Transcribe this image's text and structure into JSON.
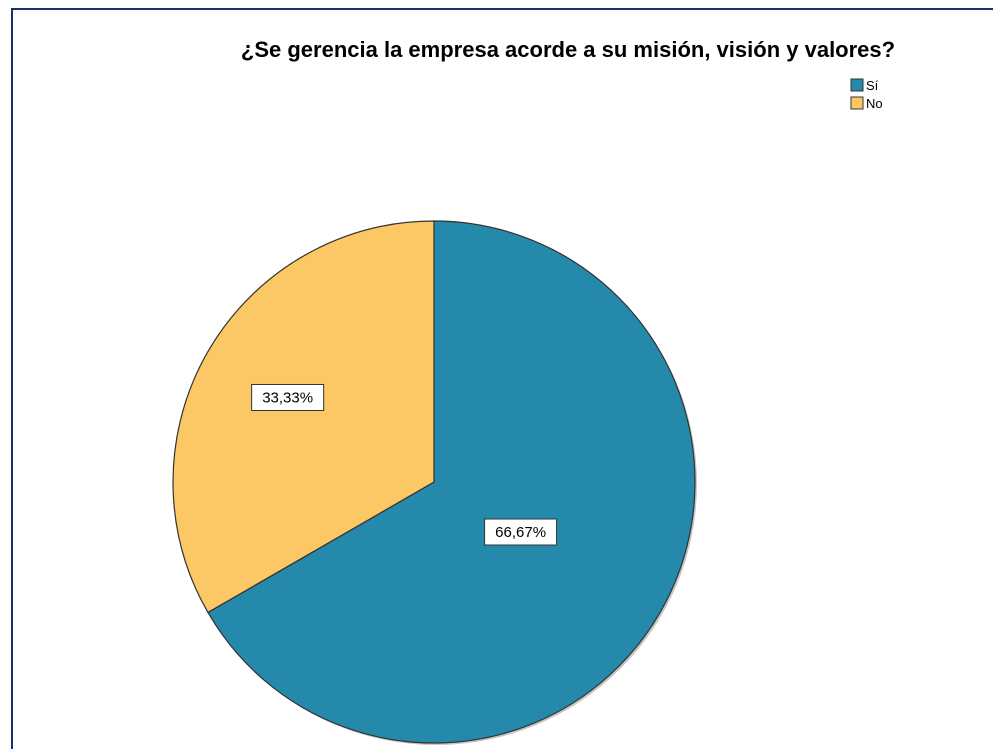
{
  "chart_data": {
    "type": "pie",
    "title": "¿Se gerencia la empresa acorde a su misión, visión y valores?",
    "categories": [
      "Sí",
      "No"
    ],
    "values": [
      66.67,
      33.33
    ],
    "labels": [
      "66,67%",
      "33,33%"
    ],
    "colors": [
      "#2589ab",
      "#fbc865"
    ],
    "legend_position": "top-right"
  }
}
